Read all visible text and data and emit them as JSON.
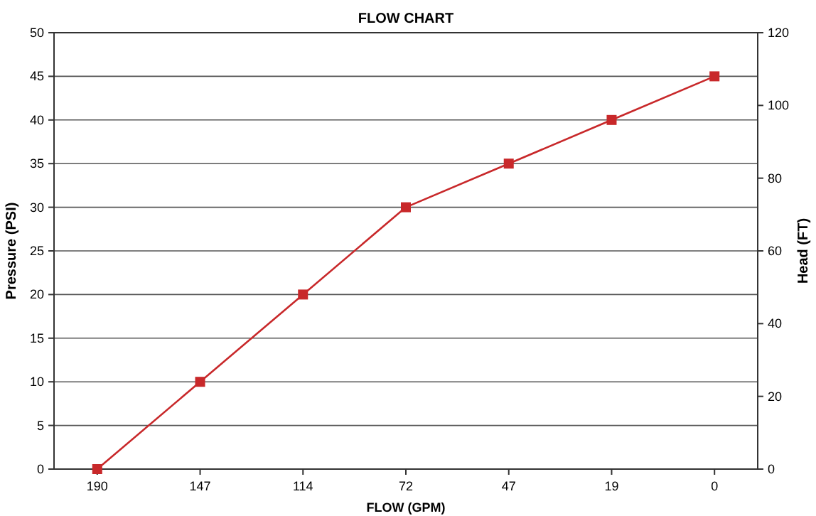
{
  "chart_data": {
    "type": "line",
    "title": "FLOW CHART",
    "xlabel": "FLOW (GPM)",
    "ylabel": "Pressure (PSI)",
    "y2label": "Head (FT)",
    "categories": [
      "190",
      "147",
      "114",
      "72",
      "47",
      "19",
      "0"
    ],
    "series": [
      {
        "color": "#c8282a",
        "values": [
          0,
          10,
          20,
          30,
          35,
          40,
          45
        ]
      }
    ],
    "ylim": [
      0,
      50
    ],
    "yticks": [
      0,
      5,
      10,
      15,
      20,
      25,
      30,
      35,
      40,
      45,
      50
    ],
    "y2lim": [
      0,
      120
    ],
    "y2ticks": [
      0,
      20,
      40,
      60,
      80,
      100,
      120
    ],
    "grid": "y",
    "marker": "square",
    "line_style": "solid"
  }
}
